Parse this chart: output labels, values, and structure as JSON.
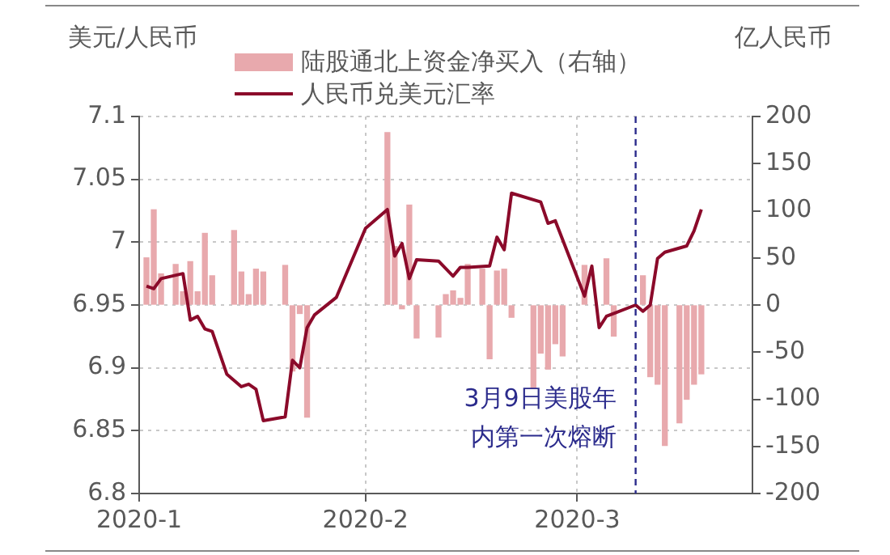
{
  "chart_data": {
    "type": "line",
    "ylabel": "美元/人民币",
    "y2label": "亿人民币",
    "xlim": [
      "2020-01-01",
      "2020-03-25"
    ],
    "xticks": [
      {
        "value": "2020-01-01",
        "label": "2020-1"
      },
      {
        "value": "2020-02-01",
        "label": "2020-2"
      },
      {
        "value": "2020-03-01",
        "label": "2020-3"
      }
    ],
    "ylim": [
      6.8,
      7.1
    ],
    "yticks": [
      6.8,
      6.85,
      6.9,
      6.95,
      7,
      7.05,
      7.1
    ],
    "y2lim": [
      -200,
      200
    ],
    "y2ticks": [
      -200,
      -150,
      -100,
      -50,
      0,
      50,
      100,
      150,
      200
    ],
    "grid": true,
    "legend": "top",
    "series": [
      {
        "name": "陆股通北上资金净买入（右轴）",
        "type": "bar",
        "axis": "y2",
        "color": "#e8a9ad",
        "x": [
          "2020-01-02",
          "2020-01-03",
          "2020-01-04",
          "2020-01-06",
          "2020-01-07",
          "2020-01-08",
          "2020-01-09",
          "2020-01-10",
          "2020-01-11",
          "2020-01-14",
          "2020-01-15",
          "2020-01-16",
          "2020-01-17",
          "2020-01-18",
          "2020-01-21",
          "2020-01-22",
          "2020-01-23",
          "2020-01-24",
          "2020-02-04",
          "2020-02-05",
          "2020-02-06",
          "2020-02-07",
          "2020-02-08",
          "2020-02-11",
          "2020-02-12",
          "2020-02-13",
          "2020-02-14",
          "2020-02-15",
          "2020-02-17",
          "2020-02-18",
          "2020-02-19",
          "2020-02-20",
          "2020-02-21",
          "2020-02-24",
          "2020-02-25",
          "2020-02-26",
          "2020-02-27",
          "2020-02-28",
          "2020-03-02",
          "2020-03-05",
          "2020-03-06",
          "2020-03-10",
          "2020-03-11",
          "2020-03-12",
          "2020-03-13",
          "2020-03-15",
          "2020-03-16",
          "2020-03-17",
          "2020-03-18"
        ],
        "values": [
          50,
          101,
          33,
          43,
          14,
          46,
          14,
          76,
          31,
          79,
          35,
          11,
          38,
          35,
          42,
          -70,
          -9,
          -119,
          183,
          62,
          -4,
          106,
          -35,
          -34,
          11,
          15,
          7,
          43,
          38,
          -57,
          36,
          38,
          -13,
          -88,
          -51,
          -68,
          -41,
          -54,
          42,
          49,
          -33,
          31,
          -76,
          -84,
          -149,
          -125,
          -100,
          -84,
          -73
        ]
      },
      {
        "name": "人民币兑美元汇率",
        "color": "#8b0a2a",
        "x": [
          "2020-01-02",
          "2020-01-03",
          "2020-01-04",
          "2020-01-07",
          "2020-01-08",
          "2020-01-09",
          "2020-01-10",
          "2020-01-11",
          "2020-01-13",
          "2020-01-15",
          "2020-01-16",
          "2020-01-17",
          "2020-01-18",
          "2020-01-21",
          "2020-01-22",
          "2020-01-23",
          "2020-01-24",
          "2020-01-25",
          "2020-01-28",
          "2020-02-01",
          "2020-02-04",
          "2020-02-05",
          "2020-02-06",
          "2020-02-07",
          "2020-02-08",
          "2020-02-11",
          "2020-02-13",
          "2020-02-14",
          "2020-02-15",
          "2020-02-18",
          "2020-02-19",
          "2020-02-20",
          "2020-02-21",
          "2020-02-25",
          "2020-02-26",
          "2020-02-27",
          "2020-02-29",
          "2020-03-02",
          "2020-03-03",
          "2020-03-04",
          "2020-03-05",
          "2020-03-09",
          "2020-03-10",
          "2020-03-11",
          "2020-03-12",
          "2020-03-13",
          "2020-03-16",
          "2020-03-17",
          "2020-03-18"
        ],
        "values": [
          6.965,
          6.963,
          6.971,
          6.975,
          6.938,
          6.941,
          6.931,
          6.929,
          6.895,
          6.885,
          6.887,
          6.883,
          6.858,
          6.861,
          6.906,
          6.9,
          6.932,
          6.942,
          6.956,
          7.011,
          7.026,
          6.989,
          6.999,
          6.971,
          6.986,
          6.985,
          6.973,
          6.98,
          6.98,
          6.981,
          7.004,
          6.994,
          7.039,
          7.032,
          7.015,
          7.017,
          6.987,
          6.957,
          6.981,
          6.932,
          6.941,
          6.95,
          6.945,
          6.95,
          6.987,
          6.992,
          6.997,
          7.009,
          7.026
        ]
      }
    ],
    "ref_lines": [
      {
        "axis": "x",
        "value": "2020-03-09",
        "label": "3月9日美股年内第一次熔断",
        "color": "#2b2b8c",
        "line_style": "dashed"
      }
    ]
  }
}
